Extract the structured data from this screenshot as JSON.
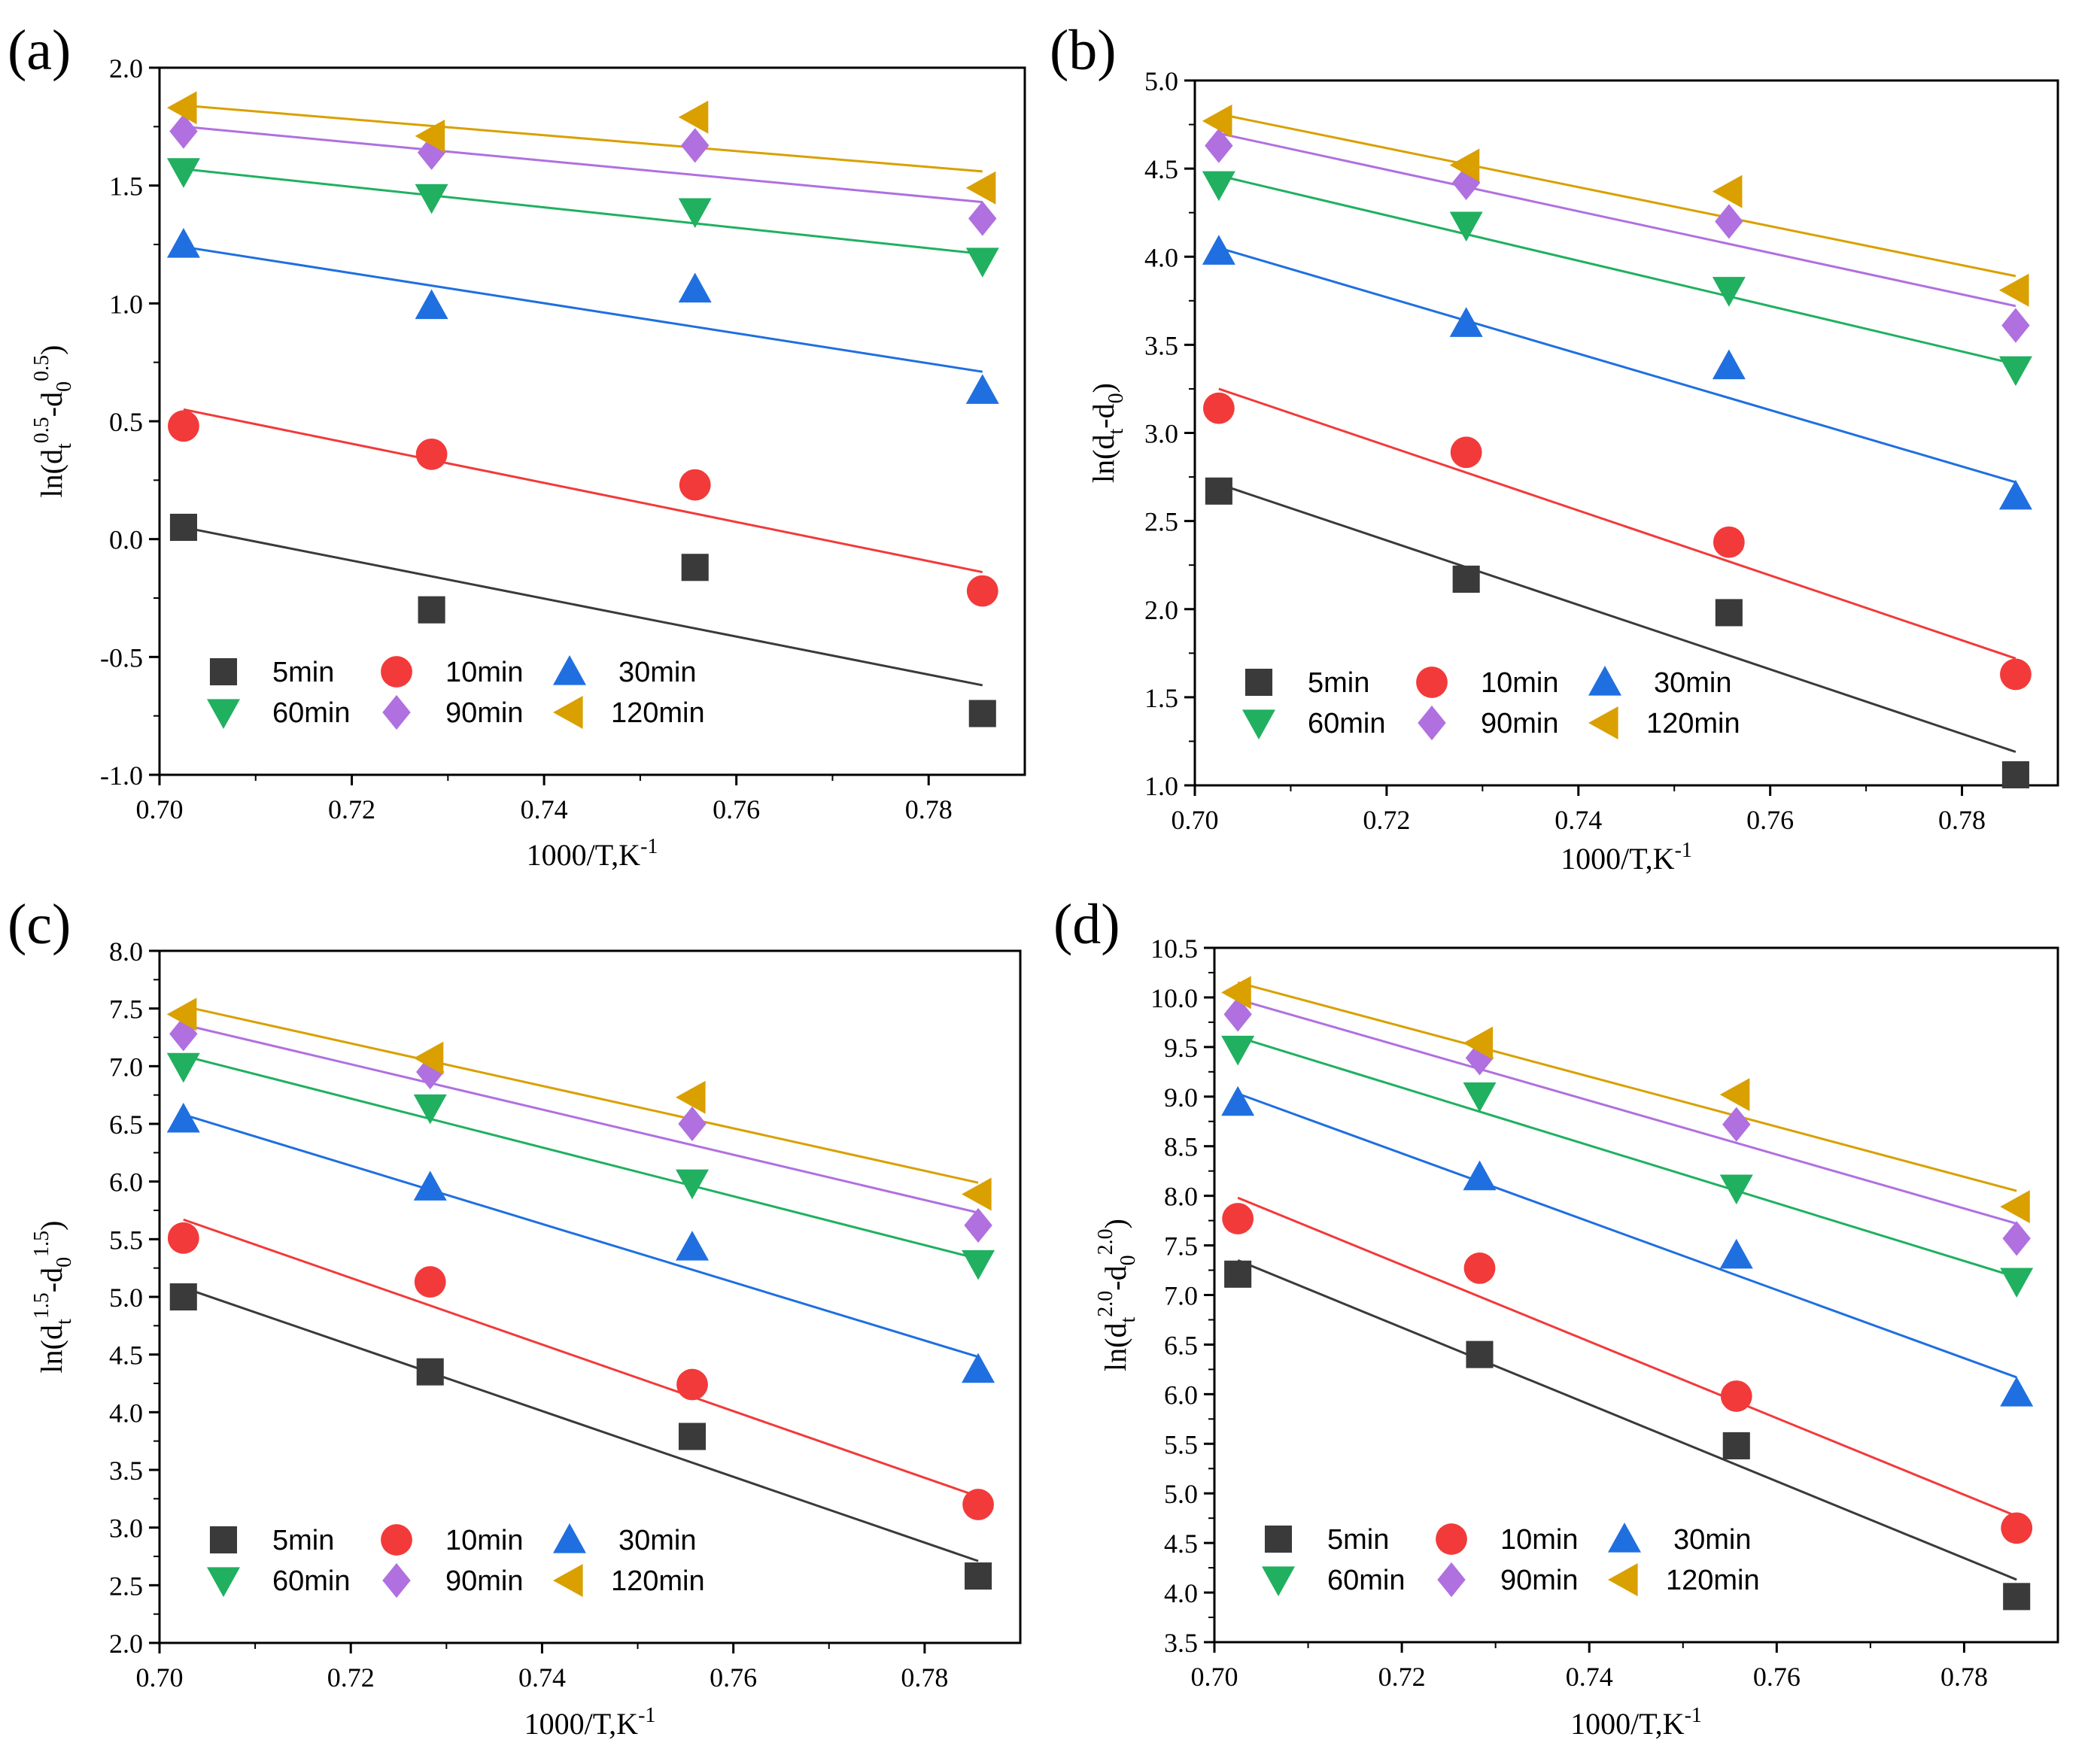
{
  "figure": {
    "series_meta": [
      {
        "name": "5min",
        "color": "#3a3a3a",
        "marker": "square"
      },
      {
        "name": "10min",
        "color": "#f23a3a",
        "marker": "circle"
      },
      {
        "name": "30min",
        "color": "#1f6fe0",
        "marker": "triangle-up"
      },
      {
        "name": "60min",
        "color": "#20b060",
        "marker": "triangle-down"
      },
      {
        "name": "90min",
        "color": "#b070e0",
        "marker": "diamond"
      },
      {
        "name": "120min",
        "color": "#d9a000",
        "marker": "triangle-left"
      }
    ]
  },
  "chart_data": [
    {
      "panel_label": "(a)",
      "type": "scatter",
      "xlabel": {
        "main": "1000/T,K",
        "sup": "-1"
      },
      "ylabel": {
        "text": "ln(d",
        "sub1": "t",
        "sup1": "0.5",
        "mid": "-d",
        "sub2": "0",
        "sup2": "0.5",
        "end": ")"
      },
      "xlim": [
        0.7,
        0.79
      ],
      "ylim": [
        -1.0,
        2.0
      ],
      "xticks": [
        0.7,
        0.72,
        0.74,
        0.76,
        0.78
      ],
      "xtick_labels": [
        "0.70",
        "0.72",
        "0.74",
        "0.76",
        "0.78"
      ],
      "yticks": [
        -1.0,
        -0.5,
        0.0,
        0.5,
        1.0,
        1.5,
        2.0
      ],
      "ytick_labels": [
        "-1.0",
        "-0.5",
        "0.0",
        "0.5",
        "1.0",
        "1.5",
        "2.0"
      ],
      "x": [
        0.7025,
        0.7283,
        0.7557,
        0.7856
      ],
      "series": [
        {
          "name": "5min",
          "values": [
            0.05,
            -0.3,
            -0.12,
            -0.74
          ],
          "fit": [
            0.05,
            -0.62
          ]
        },
        {
          "name": "10min",
          "values": [
            0.48,
            0.36,
            0.23,
            -0.22
          ],
          "fit": [
            0.55,
            -0.14
          ]
        },
        {
          "name": "30min",
          "values": [
            1.25,
            0.99,
            1.06,
            0.63
          ],
          "fit": [
            1.24,
            0.71
          ]
        },
        {
          "name": "60min",
          "values": [
            1.56,
            1.45,
            1.39,
            1.18
          ],
          "fit": [
            1.57,
            1.21
          ]
        },
        {
          "name": "90min",
          "values": [
            1.73,
            1.64,
            1.67,
            1.36
          ],
          "fit": [
            1.75,
            1.43
          ]
        },
        {
          "name": "120min",
          "values": [
            1.83,
            1.71,
            1.79,
            1.49
          ],
          "fit": [
            1.84,
            1.56
          ]
        }
      ]
    },
    {
      "panel_label": "(b)",
      "type": "scatter",
      "xlabel": {
        "main": "1000/T,K",
        "sup": "-1"
      },
      "ylabel": {
        "text": "ln(d",
        "sub1": "t",
        "sup1": "",
        "mid": "-d",
        "sub2": "0",
        "sup2": "",
        "end": ")"
      },
      "xlim": [
        0.7,
        0.79
      ],
      "ylim": [
        1.0,
        5.0
      ],
      "xticks": [
        0.7,
        0.72,
        0.74,
        0.76,
        0.78
      ],
      "xtick_labels": [
        "0.70",
        "0.72",
        "0.74",
        "0.76",
        "0.78"
      ],
      "yticks": [
        1.0,
        1.5,
        2.0,
        2.5,
        3.0,
        3.5,
        4.0,
        4.5,
        5.0
      ],
      "ytick_labels": [
        "1.0",
        "1.5",
        "2.0",
        "2.5",
        "3.0",
        "3.5",
        "4.0",
        "4.5",
        "5.0"
      ],
      "x": [
        0.7025,
        0.7283,
        0.7557,
        0.7856
      ],
      "series": [
        {
          "name": "5min",
          "values": [
            2.67,
            2.17,
            1.98,
            1.06
          ],
          "fit": [
            2.71,
            1.19
          ]
        },
        {
          "name": "10min",
          "values": [
            3.14,
            2.89,
            2.38,
            1.63
          ],
          "fit": [
            3.25,
            1.72
          ]
        },
        {
          "name": "30min",
          "values": [
            4.03,
            3.62,
            3.38,
            2.64
          ],
          "fit": [
            4.05,
            2.72
          ]
        },
        {
          "name": "60min",
          "values": [
            4.41,
            4.18,
            3.81,
            3.36
          ],
          "fit": [
            4.46,
            3.39
          ]
        },
        {
          "name": "90min",
          "values": [
            4.63,
            4.42,
            4.2,
            3.61
          ],
          "fit": [
            4.7,
            3.72
          ]
        },
        {
          "name": "120min",
          "values": [
            4.77,
            4.52,
            4.37,
            3.81
          ],
          "fit": [
            4.81,
            3.89
          ]
        }
      ]
    },
    {
      "panel_label": "(c)",
      "type": "scatter",
      "xlabel": {
        "main": "1000/T,K",
        "sup": "-1"
      },
      "ylabel": {
        "text": "ln(d",
        "sub1": "t",
        "sup1": "1.5",
        "mid": "-d",
        "sub2": "0",
        "sup2": "1.5",
        "end": ")"
      },
      "xlim": [
        0.7,
        0.79
      ],
      "ylim": [
        2.0,
        8.0
      ],
      "xticks": [
        0.7,
        0.72,
        0.74,
        0.76,
        0.78
      ],
      "xtick_labels": [
        "0.70",
        "0.72",
        "0.74",
        "0.76",
        "0.78"
      ],
      "yticks": [
        2.0,
        2.5,
        3.0,
        3.5,
        4.0,
        4.5,
        5.0,
        5.5,
        6.0,
        6.5,
        7.0,
        7.5,
        8.0
      ],
      "ytick_labels": [
        "2.0",
        "2.5",
        "3.0",
        "3.5",
        "4.0",
        "4.5",
        "5.0",
        "5.5",
        "6.0",
        "6.5",
        "7.0",
        "7.5",
        "8.0"
      ],
      "x": [
        0.7025,
        0.7283,
        0.7557,
        0.7856
      ],
      "series": [
        {
          "name": "5min",
          "values": [
            5.0,
            4.35,
            3.79,
            2.58
          ],
          "fit": [
            5.08,
            2.71
          ]
        },
        {
          "name": "10min",
          "values": [
            5.51,
            5.13,
            4.24,
            3.2
          ],
          "fit": [
            5.67,
            3.27
          ]
        },
        {
          "name": "30min",
          "values": [
            6.54,
            5.95,
            5.43,
            4.37
          ],
          "fit": [
            6.58,
            4.48
          ]
        },
        {
          "name": "60min",
          "values": [
            7.0,
            6.64,
            5.99,
            5.29
          ],
          "fit": [
            7.09,
            5.33
          ]
        },
        {
          "name": "90min",
          "values": [
            7.28,
            6.95,
            6.5,
            5.62
          ],
          "fit": [
            7.36,
            5.73
          ]
        },
        {
          "name": "120min",
          "values": [
            7.45,
            7.07,
            6.73,
            5.89
          ],
          "fit": [
            7.52,
            5.99
          ]
        }
      ]
    },
    {
      "panel_label": "(d)",
      "type": "scatter",
      "xlabel": {
        "main": "1000/T,K",
        "sup": "-1"
      },
      "ylabel": {
        "text": "ln(d",
        "sub1": "t",
        "sup1": "2.0",
        "mid": "-d",
        "sub2": "0",
        "sup2": "2.0",
        "end": ")"
      },
      "xlim": [
        0.7,
        0.79
      ],
      "ylim": [
        3.5,
        10.5
      ],
      "xticks": [
        0.7,
        0.72,
        0.74,
        0.76,
        0.78
      ],
      "xtick_labels": [
        "0.70",
        "0.72",
        "0.74",
        "0.76",
        "0.78"
      ],
      "yticks": [
        3.5,
        4.0,
        4.5,
        5.0,
        5.5,
        6.0,
        6.5,
        7.0,
        7.5,
        8.0,
        8.5,
        9.0,
        9.5,
        10.0,
        10.5
      ],
      "ytick_labels": [
        "3.5",
        "4.0",
        "4.5",
        "5.0",
        "5.5",
        "6.0",
        "6.5",
        "7.0",
        "7.5",
        "8.0",
        "8.5",
        "9.0",
        "9.5",
        "10.0",
        "10.5"
      ],
      "x": [
        0.7025,
        0.7283,
        0.7557,
        0.7856
      ],
      "series": [
        {
          "name": "5min",
          "values": [
            7.21,
            6.4,
            5.48,
            3.96
          ],
          "fit": [
            7.35,
            4.13
          ]
        },
        {
          "name": "10min",
          "values": [
            7.77,
            7.27,
            5.98,
            4.65
          ],
          "fit": [
            7.98,
            4.77
          ]
        },
        {
          "name": "30min",
          "values": [
            8.94,
            8.19,
            7.4,
            6.01
          ],
          "fit": [
            9.03,
            6.17
          ]
        },
        {
          "name": "60min",
          "values": [
            9.48,
            9.01,
            8.08,
            7.14
          ],
          "fit": [
            9.6,
            7.18
          ]
        },
        {
          "name": "90min",
          "values": [
            9.83,
            9.39,
            8.72,
            7.57
          ],
          "fit": [
            9.98,
            7.72
          ]
        },
        {
          "name": "120min",
          "values": [
            10.05,
            9.54,
            9.02,
            7.89
          ],
          "fit": [
            10.15,
            8.05
          ]
        }
      ]
    }
  ]
}
